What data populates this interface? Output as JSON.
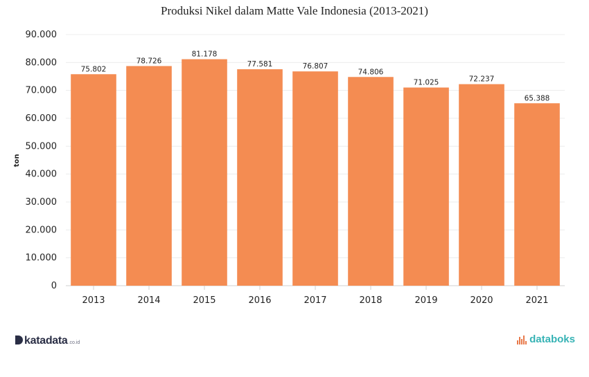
{
  "chart_data": {
    "type": "bar",
    "title": "Produksi Nikel dalam Matte Vale Indonesia (2013-2021)",
    "ylabel": "ton",
    "xlabel": "",
    "categories": [
      "2013",
      "2014",
      "2015",
      "2016",
      "2017",
      "2018",
      "2019",
      "2020",
      "2021"
    ],
    "values": [
      75802,
      78726,
      81178,
      77581,
      76807,
      74806,
      71025,
      72237,
      65388
    ],
    "value_labels": [
      "75.802",
      "78.726",
      "81.178",
      "77.581",
      "76.807",
      "74.806",
      "71.025",
      "72.237",
      "65.388"
    ],
    "ylim": [
      0,
      90000
    ],
    "yticks": [
      0,
      10000,
      20000,
      30000,
      40000,
      50000,
      60000,
      70000,
      80000,
      90000
    ],
    "ytick_labels": [
      "0",
      "10.000",
      "20.000",
      "30.000",
      "40.000",
      "50.000",
      "60.000",
      "70.000",
      "80.000",
      "90.000"
    ],
    "grid": true,
    "bar_color": "#f48c52"
  },
  "branding": {
    "left_name": "katadata",
    "left_suffix": ".co.id",
    "right_name": "databoks",
    "left_color": "#2a2e45",
    "right_color": "#37b3b5",
    "right_icon_color": "#e8794a"
  }
}
